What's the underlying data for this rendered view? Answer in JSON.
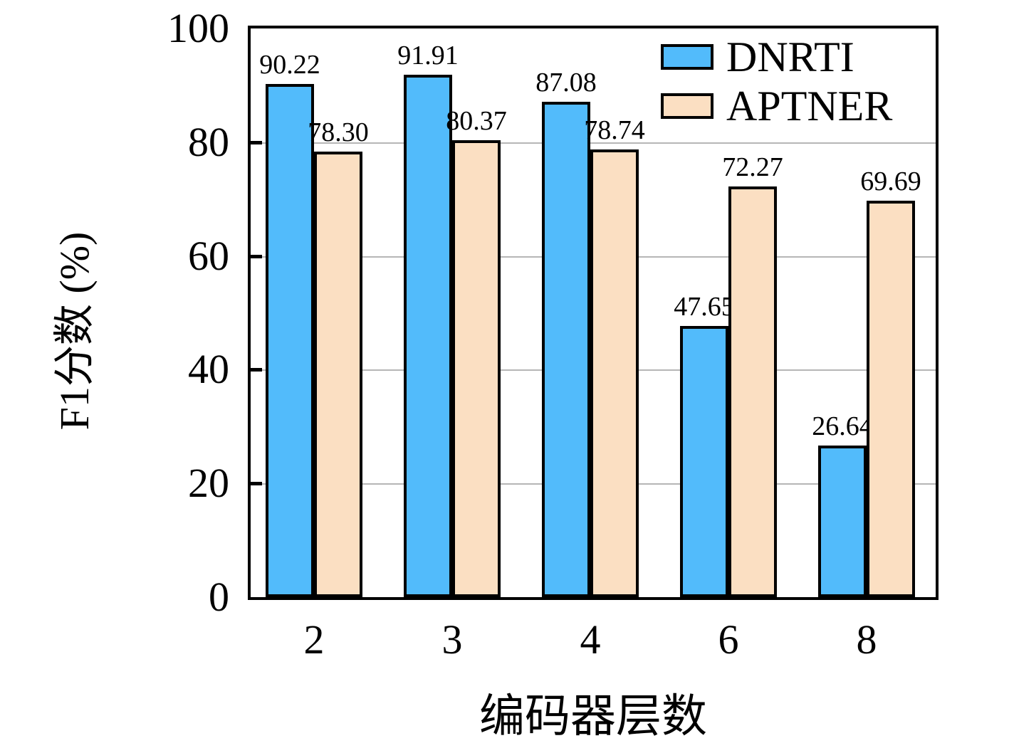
{
  "chart_data": {
    "type": "bar",
    "categories": [
      "2",
      "3",
      "4",
      "6",
      "8"
    ],
    "series": [
      {
        "name": "DNRTI",
        "color": "#52BBFB",
        "values": [
          90.22,
          91.91,
          87.08,
          47.65,
          26.64
        ]
      },
      {
        "name": "APTNER",
        "color": "#FBDFC2",
        "values": [
          78.3,
          80.37,
          78.74,
          72.27,
          69.69
        ]
      }
    ],
    "title": "",
    "xlabel": "编码器层数",
    "ylabel": "F1分数 (%)",
    "ylim": [
      0,
      100
    ],
    "yticks": [
      0,
      20,
      40,
      60,
      80,
      100
    ],
    "gridlines": [
      20,
      40,
      60,
      80
    ],
    "grid": true,
    "legend_position": "top-right",
    "bar_edge_color": "#000000",
    "grid_color": "#b6b6b6",
    "value_label_decimals": 2
  }
}
